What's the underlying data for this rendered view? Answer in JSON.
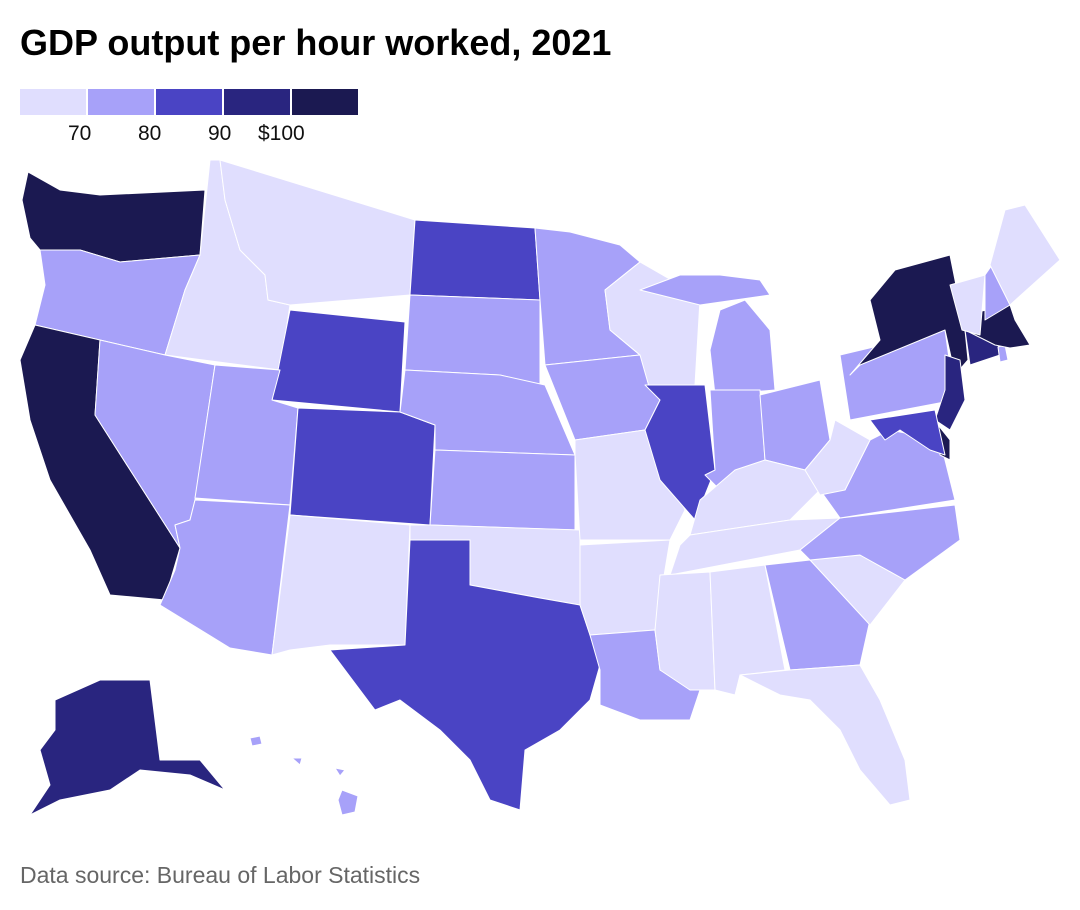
{
  "title": "GDP output per hour worked, 2021",
  "legend": {
    "colors": [
      "#e0defe",
      "#a7a1f9",
      "#4a44c4",
      "#29257f",
      "#1b1951"
    ],
    "labels": [
      "70",
      "80",
      "90",
      "$100"
    ]
  },
  "map_data": {
    "bins": [
      "< 70",
      "70–80",
      "80–90",
      "90–100",
      "≥ 100"
    ],
    "states": {
      "WA": 4,
      "OR": 1,
      "CA": 4,
      "ID": 0,
      "NV": 1,
      "MT": 0,
      "WY": 2,
      "UT": 1,
      "AZ": 1,
      "CO": 2,
      "NM": 0,
      "ND": 2,
      "SD": 1,
      "NE": 1,
      "KS": 1,
      "OK": 0,
      "TX": 2,
      "MN": 1,
      "IA": 1,
      "MO": 0,
      "AR": 0,
      "LA": 1,
      "WI": 0,
      "IL": 2,
      "MI": 1,
      "IN": 1,
      "OH": 1,
      "KY": 0,
      "TN": 0,
      "MS": 0,
      "AL": 0,
      "GA": 1,
      "FL": 0,
      "SC": 0,
      "NC": 1,
      "VA": 1,
      "WV": 0,
      "PA": 1,
      "NY": 4,
      "NJ": 3,
      "DE": 4,
      "MD": 2,
      "CT": 3,
      "RI": 1,
      "MA": 4,
      "VT": 0,
      "NH": 1,
      "ME": 0,
      "AK": 3,
      "HI": 1
    }
  },
  "source": "Data source: Bureau of Labor Statistics"
}
